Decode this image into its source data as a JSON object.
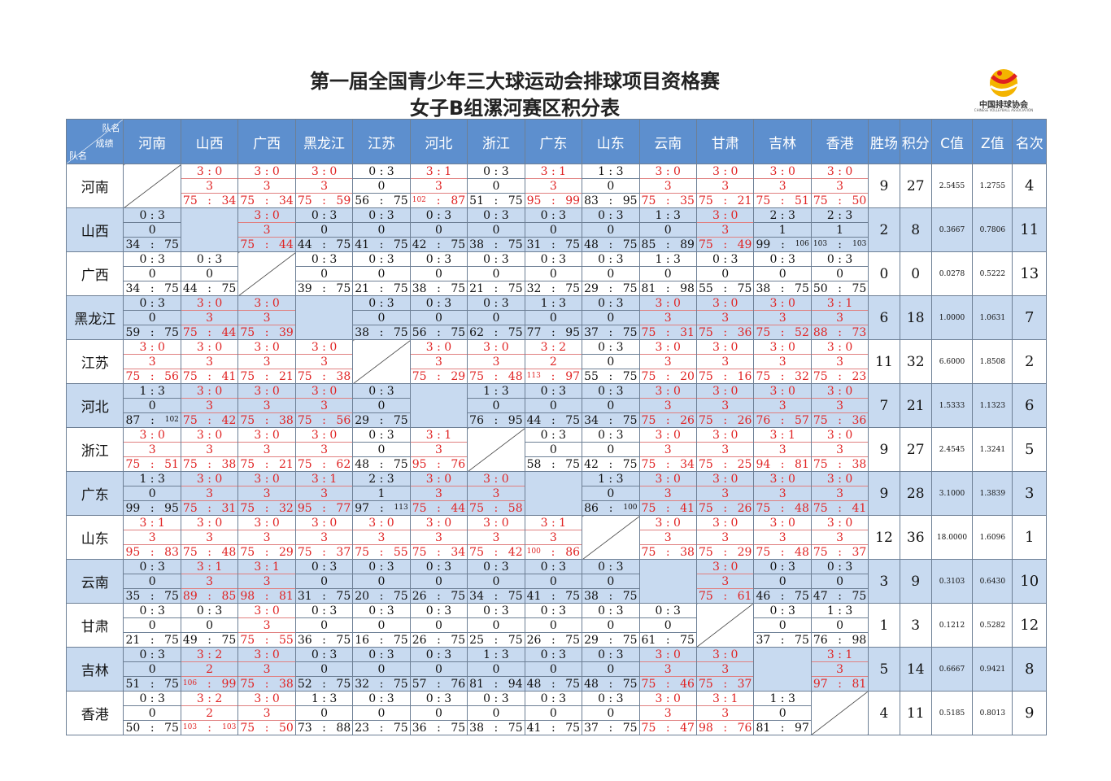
{
  "title": "第一届全国青少年三大球运动会排球项目资格赛",
  "subtitle": "女子B组漯河赛区积分表",
  "logo": {
    "text": "中国排球协会",
    "sub": "CHINESE VOLLEYBALL ASSOCIATION"
  },
  "corner": {
    "a": "队名",
    "b": "成绩",
    "c": "队名"
  },
  "teams": [
    "河南",
    "山西",
    "广西",
    "黑龙江",
    "江苏",
    "河北",
    "浙江",
    "广东",
    "山东",
    "云南",
    "甘肃",
    "吉林",
    "香港"
  ],
  "stat_headers": [
    "胜场",
    "积分",
    "C值",
    "Z值",
    "名次"
  ],
  "rows": [
    {
      "team": "河南",
      "results": [
        null,
        "3:0|3|75:34",
        "3:0|3|75:34",
        "3:0|3|75:59",
        "0:3|0|56:75",
        "3:1|3|102:87",
        "0:3|0|51:75",
        "3:1|3|95:99",
        "1:3|0|83:95",
        "3:0|3|75:35",
        "3:0|3|75:21",
        "3:0|3|75:51",
        "3:0|3|75:50"
      ],
      "stats": [
        "9",
        "27",
        "2.5455",
        "1.2755",
        "4"
      ]
    },
    {
      "team": "山西",
      "results": [
        "0:3|0|34:75",
        null,
        "3:0|3|75:44",
        "0:3|0|44:75",
        "0:3|0|41:75",
        "0:3|0|42:75",
        "0:3|0|38:75",
        "0:3|0|31:75",
        "0:3|0|48:75",
        "1:3|0|85:89",
        "3:0|3|75:49",
        "2:3|1|99:106",
        "2:3|1|103:103"
      ],
      "stats": [
        "2",
        "8",
        "0.3667",
        "0.7806",
        "11"
      ]
    },
    {
      "team": "广西",
      "results": [
        "0:3|0|34:75",
        "0:3|0|44:75",
        null,
        "0:3|0|39:75",
        "0:3|0|21:75",
        "0:3|0|38:75",
        "0:3|0|21:75",
        "0:3|0|32:75",
        "0:3|0|29:75",
        "1:3|0|81:98",
        "0:3|0|55:75",
        "0:3|0|38:75",
        "0:3|0|50:75"
      ],
      "stats": [
        "0",
        "0",
        "0.0278",
        "0.5222",
        "13"
      ]
    },
    {
      "team": "黑龙江",
      "results": [
        "0:3|0|59:75",
        "3:0|3|75:44",
        "3:0|3|75:39",
        null,
        "0:3|0|38:75",
        "0:3|0|56:75",
        "0:3|0|62:75",
        "1:3|0|77:95",
        "0:3|0|37:75",
        "3:0|3|75:31",
        "3:0|3|75:36",
        "3:0|3|75:52",
        "3:1|3|88:73"
      ],
      "stats": [
        "6",
        "18",
        "1.0000",
        "1.0631",
        "7"
      ]
    },
    {
      "team": "江苏",
      "results": [
        "3:0|3|75:56",
        "3:0|3|75:41",
        "3:0|3|75:21",
        "3:0|3|75:38",
        null,
        "3:0|3|75:29",
        "3:0|3|75:48",
        "3:2|2|113:97",
        "0:3|0|55:75",
        "3:0|3|75:20",
        "3:0|3|75:16",
        "3:0|3|75:32",
        "3:0|3|75:23"
      ],
      "stats": [
        "11",
        "32",
        "6.6000",
        "1.8508",
        "2"
      ]
    },
    {
      "team": "河北",
      "results": [
        "1:3|0|87:102",
        "3:0|3|75:42",
        "3:0|3|75:38",
        "3:0|3|75:56",
        "0:3|0|29:75",
        null,
        "1:3|0|76:95",
        "0:3|0|44:75",
        "0:3|0|34:75",
        "3:0|3|75:26",
        "3:0|3|75:26",
        "3:0|3|76:57",
        "3:0|3|75:36"
      ],
      "stats": [
        "7",
        "21",
        "1.5333",
        "1.1323",
        "6"
      ]
    },
    {
      "team": "浙江",
      "results": [
        "3:0|3|75:51",
        "3:0|3|75:38",
        "3:0|3|75:21",
        "3:0|3|75:62",
        "0:3|0|48:75",
        "3:1|3|95:76",
        null,
        "0:3|0|58:75",
        "0:3|0|42:75",
        "3:0|3|75:34",
        "3:0|3|75:25",
        "3:1|3|94:81",
        "3:0|3|75:38"
      ],
      "stats": [
        "9",
        "27",
        "2.4545",
        "1.3241",
        "5"
      ]
    },
    {
      "team": "广东",
      "results": [
        "1:3|0|99:95",
        "3:0|3|75:31",
        "3:0|3|75:32",
        "3:1|3|95:77",
        "2:3|1|97:113",
        "3:0|3|75:44",
        "3:0|3|75:58",
        null,
        "1:3|0|86:100",
        "3:0|3|75:41",
        "3:0|3|75:26",
        "3:0|3|75:48",
        "3:0|3|75:41"
      ],
      "stats": [
        "9",
        "28",
        "3.1000",
        "1.3839",
        "3"
      ]
    },
    {
      "team": "山东",
      "results": [
        "3:1|3|95:83",
        "3:0|3|75:48",
        "3:0|3|75:29",
        "3:0|3|75:37",
        "3:0|3|75:55",
        "3:0|3|75:34",
        "3:0|3|75:42",
        "3:1|3|100:86",
        null,
        "3:0|3|75:38",
        "3:0|3|75:29",
        "3:0|3|75:48",
        "3:0|3|75:37"
      ],
      "stats": [
        "12",
        "36",
        "18.0000",
        "1.6096",
        "1"
      ]
    },
    {
      "team": "云南",
      "results": [
        "0:3|0|35:75",
        "3:1|3|89:85",
        "3:1|3|98:81",
        "0:3|0|31:75",
        "0:3|0|20:75",
        "0:3|0|26:75",
        "0:3|0|34:75",
        "0:3|0|41:75",
        "0:3|0|38:75",
        null,
        "3:0|3|75:61",
        "0:3|0|46:75",
        "0:3|0|47:75"
      ],
      "stats": [
        "3",
        "9",
        "0.3103",
        "0.6430",
        "10"
      ]
    },
    {
      "team": "甘肃",
      "results": [
        "0:3|0|21:75",
        "0:3|0|49:75",
        "3:0|3|75:55",
        "0:3|0|36:75",
        "0:3|0|16:75",
        "0:3|0|26:75",
        "0:3|0|25:75",
        "0:3|0|26:75",
        "0:3|0|29:75",
        "0:3|0|61:75",
        null,
        "0:3|0|37:75",
        "1:3|0|76:98"
      ],
      "stats": [
        "1",
        "3",
        "0.1212",
        "0.5282",
        "12"
      ]
    },
    {
      "team": "吉林",
      "results": [
        "0:3|0|51:75",
        "3:2|2|106:99",
        "3:0|3|75:38",
        "0:3|0|52:75",
        "0:3|0|32:75",
        "0:3|0|57:76",
        "1:3|0|81:94",
        "0:3|0|48:75",
        "0:3|0|48:75",
        "3:0|3|75:46",
        "3:0|3|75:37",
        null,
        "3:1|3|97:81"
      ],
      "stats": [
        "5",
        "14",
        "0.6667",
        "0.9421",
        "8"
      ]
    },
    {
      "team": "香港",
      "results": [
        "0:3|0|50:75",
        "3:2|2|103:103",
        "3:0|3|75:50",
        "1:3|0|73:88",
        "0:3|0|23:75",
        "0:3|0|36:75",
        "0:3|0|38:75",
        "0:3|0|41:75",
        "0:3|0|37:75",
        "3:0|3|75:47",
        "3:1|3|98:76",
        "1:3|0|81:97",
        null
      ],
      "stats": [
        "4",
        "11",
        "0.5185",
        "0.8013",
        "9"
      ]
    }
  ]
}
